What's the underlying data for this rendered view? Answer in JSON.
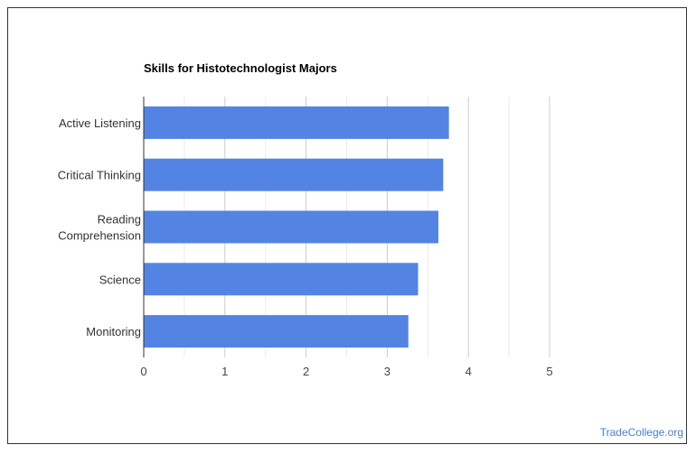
{
  "chart_data": {
    "type": "bar",
    "orientation": "horizontal",
    "title": "Skills for Histotechnologist Majors",
    "categories": [
      "Active Listening",
      "Critical Thinking",
      "Reading Comprehension",
      "Science",
      "Monitoring"
    ],
    "category_lines": [
      [
        "Active Listening"
      ],
      [
        "Critical Thinking"
      ],
      [
        "Reading",
        "Comprehension"
      ],
      [
        "Science"
      ],
      [
        "Monitoring"
      ]
    ],
    "values": [
      3.76,
      3.69,
      3.63,
      3.38,
      3.26
    ],
    "xlim": [
      0,
      5
    ],
    "xticks": [
      "0",
      "1",
      "2",
      "3",
      "4",
      "5"
    ],
    "grid": true,
    "bar_color": "#5384e3"
  },
  "credit": "TradeCollege.org"
}
